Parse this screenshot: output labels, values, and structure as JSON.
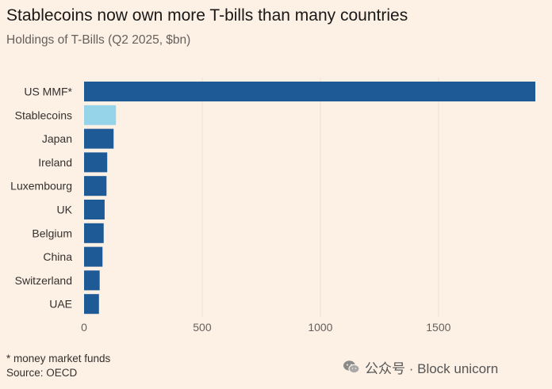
{
  "header": {
    "title": "Stablecoins now own more T-bills than many countries",
    "subtitle": "Holdings of T-Bills (Q2 2025, $bn)"
  },
  "footer": {
    "footnote": "* money market funds",
    "source": "Source: OECD"
  },
  "watermark": {
    "text": "公众号 · Block unicorn",
    "icon": "wechat-icon"
  },
  "chart_data": {
    "type": "bar",
    "orientation": "horizontal",
    "title": "Stablecoins now own more T-bills than many countries",
    "subtitle": "Holdings of T-Bills (Q2 2025, $bn)",
    "xlabel": "",
    "ylabel": "",
    "categories": [
      "US MMF*",
      "Stablecoins",
      "Japan",
      "Ireland",
      "Luxembourg",
      "UK",
      "Belgium",
      "China",
      "Switzerland",
      "UAE"
    ],
    "values": [
      1910,
      135,
      125,
      98,
      95,
      87,
      83,
      78,
      66,
      63
    ],
    "xlim": [
      0,
      1910
    ],
    "xticks": [
      0,
      500,
      1000,
      1500
    ],
    "grid": true,
    "colors": {
      "default": "#1d5a96",
      "highlight": "#96d4ea",
      "highlight_category": "Stablecoins",
      "grid": "#ece0d5"
    }
  }
}
